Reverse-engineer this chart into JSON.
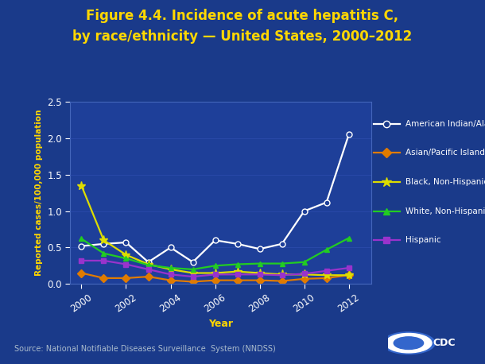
{
  "years": [
    2000,
    2001,
    2002,
    2003,
    2004,
    2005,
    2006,
    2007,
    2008,
    2009,
    2010,
    2011,
    2012
  ],
  "american_indian": [
    0.52,
    0.55,
    0.57,
    0.3,
    0.5,
    0.3,
    0.6,
    0.55,
    0.48,
    0.55,
    1.0,
    1.12,
    2.05
  ],
  "asian_pacific": [
    0.15,
    0.08,
    0.08,
    0.1,
    0.05,
    0.03,
    0.05,
    0.05,
    0.05,
    0.04,
    0.07,
    0.08,
    0.12
  ],
  "black_nonhisp": [
    1.35,
    0.6,
    0.4,
    0.27,
    0.2,
    0.15,
    0.15,
    0.17,
    0.15,
    0.13,
    0.13,
    0.12,
    0.12
  ],
  "white_nonhisp": [
    0.62,
    0.42,
    0.35,
    0.26,
    0.22,
    0.2,
    0.25,
    0.27,
    0.28,
    0.28,
    0.3,
    0.47,
    0.63
  ],
  "hispanic": [
    0.32,
    0.32,
    0.27,
    0.2,
    0.13,
    0.1,
    0.13,
    0.13,
    0.13,
    0.12,
    0.14,
    0.18,
    0.22
  ],
  "line_colors": {
    "american_indian": "#ffffff",
    "asian_pacific": "#e07b00",
    "black_nonhisp": "#dddd00",
    "white_nonhisp": "#22cc22",
    "hispanic": "#9933cc"
  },
  "line_markers": {
    "american_indian": "o",
    "asian_pacific": "D",
    "black_nonhisp": "*",
    "white_nonhisp": "^",
    "hispanic": "s"
  },
  "legend_labels": {
    "american_indian": "American Indian/Alaska Native",
    "asian_pacific": "Asian/Pacific Islander",
    "black_nonhisp": "Black, Non-Hispanic",
    "white_nonhisp": "White, Non-Hispanic",
    "hispanic": "Hispanic"
  },
  "title_line1": "Figure 4.4. Incidence of acute hepatitis C,",
  "title_line2": "by race/ethnicity — United States, 2000–2012",
  "ylabel": "Reported cases/100,000 population",
  "xlabel": "Year",
  "source": "Source: National Notifiable Diseases Surveillance  System (NNDSS)",
  "ylim": [
    0,
    2.5
  ],
  "yticks": [
    0,
    0.5,
    1.0,
    1.5,
    2.0,
    2.5
  ],
  "xticks": [
    2000,
    2002,
    2004,
    2006,
    2008,
    2010,
    2012
  ],
  "bg_outer": "#1a3a8a",
  "bg_plot": "#1e3f99",
  "title_color": "#ffd700",
  "axis_label_color": "#ffd700",
  "tick_color": "#ffffff",
  "legend_text_color": "#ffffff",
  "source_text_color": "#aabbcc",
  "grid_color": "#2a4aaa"
}
